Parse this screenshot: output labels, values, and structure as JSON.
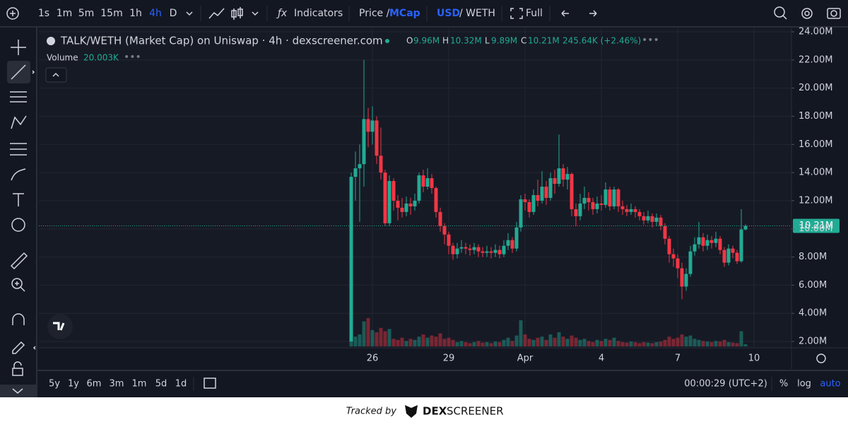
{
  "toolbar": {
    "intervals": [
      "1s",
      "1m",
      "5m",
      "15m",
      "1h",
      "4h",
      "D"
    ],
    "active_interval": 5,
    "indicators": "Indicators",
    "price": "Price /",
    "mcap": "MCap",
    "usd": "USD",
    "weth": "/ WETH",
    "full": "Full"
  },
  "legend": {
    "title": "TALK/WETH (Market Cap) on Uniswap · 4h · dexscreener.com",
    "open_label": "O",
    "open": "9.96M",
    "high_label": "H",
    "high": "10.32M",
    "low_label": "L",
    "low": "9.89M",
    "close_label": "C",
    "close": "10.21M",
    "change": "245.64K (+2.46%)",
    "volume_label": "Volume",
    "volume": "20.003K"
  },
  "chart_data": {
    "type": "candlestick",
    "categories": [
      null,
      null,
      null,
      null,
      null,
      "26",
      null,
      null,
      null,
      null,
      null,
      null,
      null,
      null,
      null,
      null,
      null,
      null,
      null,
      null,
      null,
      null,
      null,
      "29",
      null,
      null,
      null,
      null,
      null,
      null,
      null,
      null,
      null,
      null,
      null,
      null,
      null,
      null,
      null,
      null,
      null,
      "Apr",
      null,
      null,
      null,
      null,
      null,
      null,
      null,
      null,
      null,
      null,
      null,
      null,
      null,
      null,
      null,
      null,
      null,
      "4",
      null,
      null,
      null,
      null,
      null,
      null,
      null,
      null,
      null,
      null,
      null,
      null,
      null,
      null,
      null,
      null,
      null,
      "7",
      null,
      null,
      null,
      null,
      null,
      null,
      null,
      null,
      null,
      null,
      null,
      null,
      null,
      null,
      null,
      null,
      null,
      "10"
    ],
    "open": [
      2.0,
      13.7,
      14.3,
      14.6,
      17.8,
      16.9,
      17.7,
      15.2,
      14.0,
      10.4,
      13.4,
      12.0,
      11.5,
      11.2,
      11.8,
      11.6,
      12.0,
      13.8,
      13.0,
      13.6,
      12.9,
      11.2,
      10.2,
      9.6,
      8.8,
      8.2,
      8.6,
      8.7,
      8.6,
      8.5,
      8.7,
      8.4,
      8.3,
      8.4,
      8.3,
      8.5,
      8.2,
      8.8,
      9.2,
      8.6,
      10.1,
      12.1,
      11.9,
      11.2,
      12.4,
      12.0,
      13.0,
      12.2,
      13.6,
      13.2,
      14.3,
      13.5,
      13.9,
      11.4,
      10.9,
      11.8,
      12.2,
      11.9,
      11.4,
      11.8,
      11.7,
      12.8,
      11.6,
      12.8,
      11.6,
      11.4,
      11.2,
      11.4,
      11.2,
      10.9,
      10.6,
      10.9,
      10.5,
      10.8,
      10.2,
      9.3,
      8.2,
      7.9,
      7.2,
      5.9,
      6.8,
      8.4,
      8.9,
      9.4,
      8.8,
      9.2,
      9.0,
      9.3,
      8.5,
      7.6,
      8.6,
      8.3,
      7.7,
      9.96,
      null,
      null
    ],
    "high": [
      14.0,
      15.5,
      16.0,
      22.0,
      18.6,
      18.7,
      18.0,
      17.2,
      14.2,
      13.8,
      13.6,
      12.4,
      12.2,
      12.3,
      12.2,
      12.5,
      14.0,
      14.2,
      14.3,
      13.9,
      13.0,
      11.5,
      10.4,
      9.8,
      9.0,
      9.0,
      9.2,
      9.0,
      8.9,
      9.0,
      8.9,
      8.7,
      8.8,
      8.7,
      8.9,
      8.8,
      9.2,
      9.7,
      9.4,
      10.5,
      12.4,
      12.5,
      12.1,
      12.8,
      13.5,
      14.1,
      13.4,
      14.0,
      14.2,
      16.7,
      14.6,
      14.4,
      14.0,
      11.8,
      12.5,
      13.0,
      12.6,
      12.2,
      12.3,
      12.4,
      13.3,
      13.0,
      13.0,
      12.9,
      12.0,
      11.7,
      11.8,
      11.6,
      11.4,
      11.2,
      11.3,
      11.1,
      11.1,
      11.0,
      10.4,
      9.5,
      8.6,
      8.2,
      7.6,
      7.2,
      8.8,
      9.4,
      10.5,
      9.7,
      9.6,
      9.5,
      9.8,
      9.5,
      8.7,
      8.9,
      8.8,
      8.5,
      11.4,
      10.32,
      null,
      null
    ],
    "low": [
      2.0,
      12.0,
      10.5,
      13.0,
      15.8,
      16.0,
      14.6,
      13.5,
      10.2,
      10.2,
      11.3,
      10.6,
      10.8,
      10.9,
      11.0,
      11.3,
      11.8,
      12.6,
      12.8,
      12.5,
      10.8,
      9.8,
      8.9,
      8.2,
      7.8,
      7.9,
      8.3,
      8.2,
      8.1,
      8.2,
      8.0,
      8.0,
      8.0,
      7.9,
      8.0,
      7.9,
      8.0,
      8.5,
      8.3,
      8.4,
      9.8,
      11.3,
      10.8,
      11.0,
      11.6,
      11.8,
      11.7,
      12.0,
      12.5,
      13.0,
      13.0,
      12.8,
      10.9,
      10.2,
      10.6,
      11.4,
      11.3,
      11.0,
      11.1,
      11.3,
      11.5,
      11.3,
      11.4,
      11.2,
      11.0,
      10.9,
      11.0,
      10.8,
      10.6,
      10.3,
      10.4,
      10.1,
      10.2,
      9.9,
      8.9,
      7.6,
      7.3,
      6.5,
      5.0,
      5.6,
      6.6,
      8.1,
      8.6,
      8.4,
      8.5,
      8.6,
      8.7,
      8.2,
      7.3,
      7.4,
      7.9,
      7.5,
      7.6,
      9.89,
      null,
      null
    ],
    "close": [
      13.7,
      14.3,
      14.6,
      17.8,
      16.9,
      17.7,
      15.2,
      14.0,
      10.4,
      13.4,
      12.0,
      11.5,
      11.2,
      11.8,
      11.6,
      12.0,
      13.8,
      13.0,
      13.6,
      12.9,
      11.2,
      10.2,
      9.6,
      8.8,
      8.2,
      8.6,
      8.7,
      8.6,
      8.5,
      8.7,
      8.4,
      8.3,
      8.4,
      8.3,
      8.5,
      8.2,
      8.8,
      9.2,
      8.6,
      10.1,
      12.1,
      11.9,
      11.2,
      12.4,
      12.0,
      13.0,
      12.2,
      13.6,
      13.2,
      14.3,
      13.5,
      13.9,
      11.4,
      10.9,
      11.8,
      12.2,
      11.9,
      11.4,
      11.8,
      11.7,
      12.8,
      11.6,
      12.8,
      11.6,
      11.4,
      11.2,
      11.4,
      11.2,
      10.9,
      10.6,
      10.9,
      10.5,
      10.8,
      10.2,
      9.3,
      8.2,
      7.9,
      7.2,
      5.9,
      6.8,
      8.4,
      8.9,
      9.4,
      8.8,
      9.2,
      9.0,
      9.3,
      8.5,
      7.6,
      8.6,
      8.3,
      7.7,
      9.96,
      10.21,
      null,
      null
    ],
    "volume": [
      180,
      90,
      110,
      230,
      260,
      150,
      130,
      170,
      140,
      160,
      70,
      60,
      80,
      50,
      70,
      60,
      90,
      110,
      80,
      100,
      90,
      120,
      70,
      80,
      60,
      40,
      50,
      40,
      30,
      40,
      50,
      35,
      40,
      30,
      45,
      40,
      60,
      80,
      50,
      100,
      240,
      110,
      70,
      60,
      80,
      90,
      60,
      110,
      80,
      130,
      90,
      70,
      100,
      80,
      60,
      70,
      50,
      40,
      60,
      50,
      70,
      60,
      80,
      50,
      40,
      35,
      45,
      40,
      30,
      40,
      35,
      30,
      40,
      45,
      60,
      90,
      70,
      80,
      110,
      90,
      100,
      70,
      60,
      50,
      45,
      40,
      50,
      45,
      60,
      40,
      35,
      30,
      140,
      20.003,
      null,
      null
    ],
    "up_color": "#22ab94",
    "down_color": "#f23645",
    "ylim": [
      1.65,
      24.25
    ],
    "yticks": [
      {
        "value": 2,
        "label": "2.00M"
      },
      {
        "value": 4,
        "label": "4.00M"
      },
      {
        "value": 6,
        "label": "6.00M"
      },
      {
        "value": 8,
        "label": "8.00M"
      },
      {
        "value": 10,
        "label": "10.00M"
      },
      {
        "value": 12,
        "label": "12.00M"
      },
      {
        "value": 14,
        "label": "14.00M"
      },
      {
        "value": 16,
        "label": "16.00M"
      },
      {
        "value": 18,
        "label": "18.00M"
      },
      {
        "value": 20,
        "label": "20.00M"
      },
      {
        "value": 22,
        "label": "22.00M"
      },
      {
        "value": 24,
        "label": "24.00M"
      }
    ],
    "grid": true
  },
  "bottom_bar": {
    "ranges": [
      "5y",
      "1y",
      "6m",
      "3m",
      "1m",
      "5d",
      "1d"
    ],
    "clock": "00:00:29 (UTC+2)",
    "scale_options": [
      "%",
      "log",
      "auto"
    ],
    "active_scale": 2
  },
  "footer": {
    "tracked_by": "Tracked by",
    "brand": "DEX",
    "brand_bold": "SCREENER"
  }
}
